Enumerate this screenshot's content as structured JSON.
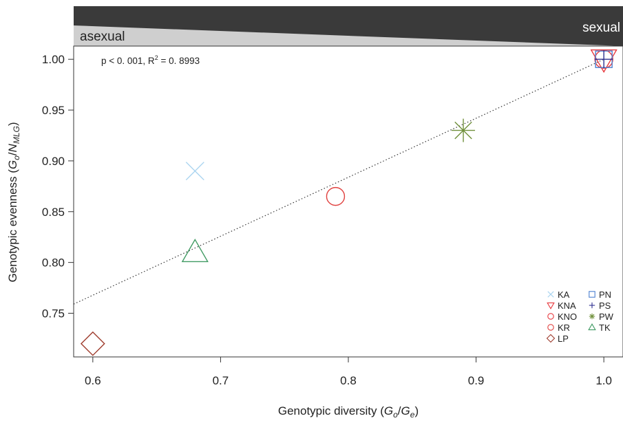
{
  "chart_data": {
    "type": "scatter",
    "banner": {
      "left_label": "asexual",
      "right_label": "sexual"
    },
    "annotation": {
      "p_text": "p < 0. 001, R",
      "r2_sup": "2",
      "r2_val": " = 0. 8993"
    },
    "xlabel": {
      "prefix": "Genotypic diversity (",
      "v1": "G",
      "s1": "o",
      "mid": "/",
      "v2": "G",
      "s2": "e",
      "suffix": ")"
    },
    "ylabel": {
      "prefix": "Genotypic evenness (",
      "v1": "G",
      "s1": "o",
      "mid": "/",
      "v2": "N",
      "s2": "MLG",
      "suffix": ")"
    },
    "xlim": [
      0.585,
      1.015
    ],
    "ylim": [
      0.707,
      1.013
    ],
    "xticks": [
      {
        "value": 0.6,
        "label": "0.6"
      },
      {
        "value": 0.7,
        "label": "0.7"
      },
      {
        "value": 0.8,
        "label": "0.8"
      },
      {
        "value": 0.9,
        "label": "0.9"
      },
      {
        "value": 1.0,
        "label": "1.0"
      }
    ],
    "yticks": [
      {
        "value": 0.75,
        "label": "0.75"
      },
      {
        "value": 0.8,
        "label": "0.80"
      },
      {
        "value": 0.85,
        "label": "0.85"
      },
      {
        "value": 0.9,
        "label": "0.90"
      },
      {
        "value": 0.95,
        "label": "0.95"
      },
      {
        "value": 1.0,
        "label": "1.00"
      }
    ],
    "grid": false,
    "trend_line": {
      "x": [
        0.585,
        1.0
      ],
      "y": [
        0.759,
        1.0
      ],
      "style": "dotted"
    },
    "series": [
      {
        "name": "KA",
        "marker": "cross",
        "color": "#a9d4f0",
        "x": 0.68,
        "y": 0.89
      },
      {
        "name": "KNA",
        "marker": "triangle-down",
        "color": "#e8383d",
        "x": 1.0,
        "y": 1.0
      },
      {
        "name": "KNO",
        "marker": "circle",
        "color": "#e8383d",
        "x": 1.0,
        "y": 1.0
      },
      {
        "name": "KR",
        "marker": "circle",
        "color": "#e0403e",
        "x": 0.79,
        "y": 0.865
      },
      {
        "name": "LP",
        "marker": "diamond",
        "color": "#9e3b2c",
        "x": 0.6,
        "y": 0.72
      },
      {
        "name": "PN",
        "marker": "square",
        "color": "#4a7fd0",
        "x": 1.0,
        "y": 1.0
      },
      {
        "name": "PS",
        "marker": "plus",
        "color": "#2d2f8f",
        "x": 1.0,
        "y": 1.0
      },
      {
        "name": "PW",
        "marker": "asterisk",
        "color": "#6f8f3a",
        "x": 0.89,
        "y": 0.93
      },
      {
        "name": "TK",
        "marker": "triangle-up",
        "color": "#3f9a62",
        "x": 0.68,
        "y": 0.81
      }
    ],
    "legend": {
      "placement": "bottom-right",
      "columns": [
        [
          "KA",
          "KNA",
          "KNO",
          "KR",
          "LP"
        ],
        [
          "PN",
          "PS",
          "PW",
          "TK"
        ]
      ]
    }
  }
}
